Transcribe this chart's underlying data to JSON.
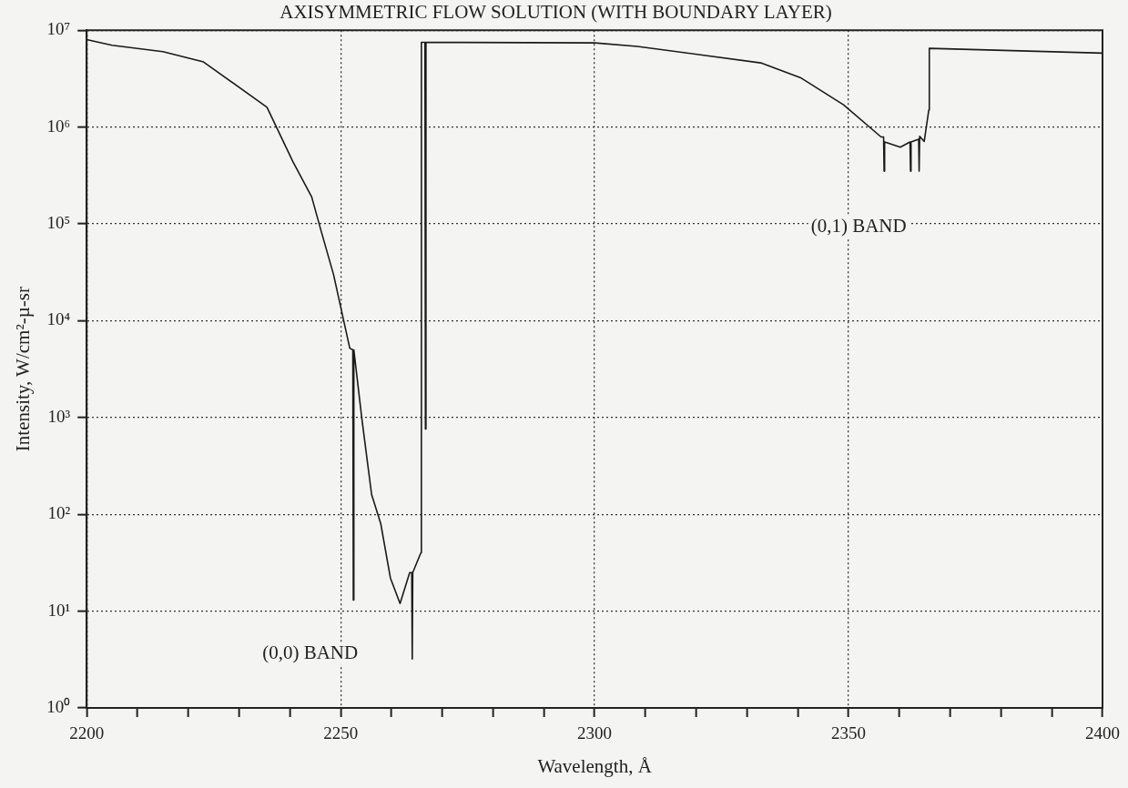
{
  "chart_data": {
    "type": "line",
    "title": "AXISYMMETRIC FLOW SOLUTION (WITH BOUNDARY LAYER)",
    "xlabel": "Wavelength, Å",
    "ylabel": "Intensity, W/cm²-µ-sr",
    "series": [
      {
        "color": "#1a1a1a",
        "x": [
          2200,
          2205,
          2215,
          2223,
          2235.5,
          2240.6,
          2244.3,
          2246.2,
          2248.6,
          2251.8,
          2252.4,
          2252.5,
          2252.6,
          2254.2,
          2256.1,
          2257.9,
          2259.8,
          2261.7,
          2263.6,
          2264.0,
          2264.1,
          2264.2,
          2265.8,
          2265.9,
          2266.6,
          2266.7,
          2266.8,
          2300,
          2308.4,
          2332.7,
          2340.7,
          2349,
          2356.4,
          2356.9,
          2357,
          2357.1,
          2360.2,
          2362.1,
          2362.2,
          2362.3,
          2363.8,
          2363.9,
          2364,
          2364.9,
          2365.8,
          2365.9,
          2400
        ],
        "values": [
          8000000,
          7000000,
          6000000,
          4700000,
          1600000,
          440000,
          190000,
          83000,
          30000,
          5200,
          5000,
          13,
          5000,
          950,
          160,
          80,
          22,
          12,
          25,
          25,
          3.2,
          25,
          40,
          7500000,
          7500000,
          760,
          7500000,
          7400000,
          6800000,
          4600000,
          3200000,
          1700000,
          790000,
          790000,
          350000,
          700000,
          620000,
          700000,
          350000,
          700000,
          750000,
          350000,
          800000,
          710000,
          1500000,
          6500000,
          5800000
        ]
      }
    ],
    "xlim": [
      2200,
      2400
    ],
    "xticks": [
      2200,
      {
        "value": 2210,
        "label": null
      },
      {
        "value": 2220,
        "label": null
      },
      {
        "value": 2230,
        "label": null
      },
      {
        "value": 2240,
        "label": null
      },
      2250,
      {
        "value": 2260,
        "label": null
      },
      {
        "value": 2270,
        "label": null
      },
      {
        "value": 2280,
        "label": null
      },
      {
        "value": 2290,
        "label": null
      },
      2300,
      {
        "value": 2310,
        "label": null
      },
      {
        "value": 2320,
        "label": null
      },
      {
        "value": 2330,
        "label": null
      },
      {
        "value": 2340,
        "label": null
      },
      2350,
      {
        "value": 2360,
        "label": null
      },
      {
        "value": 2370,
        "label": null
      },
      {
        "value": 2380,
        "label": null
      },
      {
        "value": 2390,
        "label": null
      },
      2400
    ],
    "ylim": [
      1,
      10000000
    ],
    "yticks": [
      {
        "value": 1,
        "label": "10⁰"
      },
      {
        "value": 10,
        "label": "10¹"
      },
      {
        "value": 100,
        "label": "10²"
      },
      {
        "value": 1000,
        "label": "10³"
      },
      {
        "value": 10000,
        "label": "10⁴"
      },
      {
        "value": 100000,
        "label": "10⁵"
      },
      {
        "value": 1000000,
        "label": "10⁶"
      },
      {
        "value": 10000000,
        "label": "10⁷"
      }
    ],
    "log": "y",
    "grid": true,
    "legend": false,
    "marker": "none",
    "line_style": "solid",
    "annotations": [
      "(0,0) BAND",
      "(0,1) BAND"
    ]
  }
}
